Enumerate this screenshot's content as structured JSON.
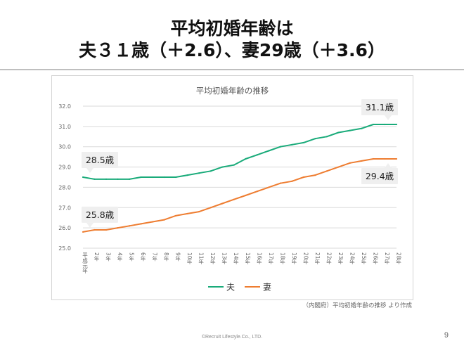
{
  "slide": {
    "heading_line1": "平均初婚年齢は",
    "heading_line2": "夫３１歳（＋2.6）、妻29歳（＋3.6）",
    "source_note": "（内閣府）平均初婚年齢の推移 より作成",
    "footer": "©Recruit Lifestyle.Co., LTD.",
    "page_number": "9"
  },
  "chart_data": {
    "type": "line",
    "title": "平均初婚年齢の推移",
    "x": [
      "平成元年",
      "2年",
      "3年",
      "4年",
      "5年",
      "6年",
      "7年",
      "8年",
      "9年",
      "10年",
      "11年",
      "12年",
      "13年",
      "14年",
      "15年",
      "16年",
      "17年",
      "18年",
      "19年",
      "20年",
      "21年",
      "22年",
      "23年",
      "24年",
      "25年",
      "26年",
      "27年",
      "28年"
    ],
    "series": [
      {
        "name": "夫",
        "color": "#1aab7a",
        "values": [
          28.5,
          28.4,
          28.4,
          28.4,
          28.4,
          28.5,
          28.5,
          28.5,
          28.5,
          28.6,
          28.7,
          28.8,
          29.0,
          29.1,
          29.4,
          29.6,
          29.8,
          30.0,
          30.1,
          30.2,
          30.4,
          30.5,
          30.7,
          30.8,
          30.9,
          31.1,
          31.1,
          31.1
        ]
      },
      {
        "name": "妻",
        "color": "#ee7d31",
        "values": [
          25.8,
          25.9,
          25.9,
          26.0,
          26.1,
          26.2,
          26.3,
          26.4,
          26.6,
          26.7,
          26.8,
          27.0,
          27.2,
          27.4,
          27.6,
          27.8,
          28.0,
          28.2,
          28.3,
          28.5,
          28.6,
          28.8,
          29.0,
          29.2,
          29.3,
          29.4,
          29.4,
          29.4
        ]
      }
    ],
    "ylim": [
      25.0,
      32.0
    ],
    "y_ticks": [
      "25.0",
      "26.0",
      "27.0",
      "28.0",
      "29.0",
      "30.0",
      "31.0",
      "32.0"
    ],
    "grid": true,
    "legend_position": "bottom",
    "callouts": [
      {
        "text": "28.5歳",
        "series": 0,
        "index": 0
      },
      {
        "text": "31.1歳",
        "series": 0,
        "index": 27
      },
      {
        "text": "25.8歳",
        "series": 1,
        "index": 0
      },
      {
        "text": "29.4歳",
        "series": 1,
        "index": 27
      }
    ]
  }
}
